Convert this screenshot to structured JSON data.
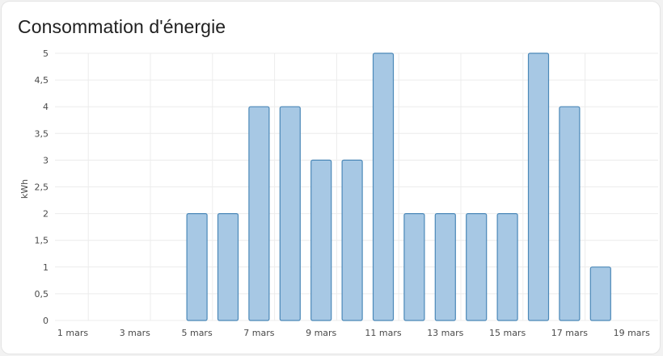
{
  "card": {
    "title": "Consommation d'énergie"
  },
  "chart_data": {
    "type": "bar",
    "title": "Consommation d'énergie",
    "ylabel": "kWh",
    "xlabel": "",
    "ylim": [
      0,
      5
    ],
    "y_ticks": [
      "0",
      "0,5",
      "1",
      "1,5",
      "2",
      "2,5",
      "3",
      "3,5",
      "4",
      "4,5",
      "5"
    ],
    "x_ticks": [
      "1 mars",
      "3 mars",
      "5 mars",
      "7 mars",
      "9 mars",
      "11 mars",
      "13 mars",
      "15 mars",
      "17 mars",
      "19 mars"
    ],
    "categories": [
      "1 mars",
      "2 mars",
      "3 mars",
      "4 mars",
      "5 mars",
      "6 mars",
      "7 mars",
      "8 mars",
      "9 mars",
      "10 mars",
      "11 mars",
      "12 mars",
      "13 mars",
      "14 mars",
      "15 mars",
      "16 mars",
      "17 mars",
      "18 mars",
      "19 mars"
    ],
    "values": [
      0,
      0,
      0,
      0,
      2,
      2,
      4,
      4,
      3,
      3,
      5,
      2,
      2,
      2,
      2,
      5,
      4,
      1,
      0
    ],
    "grid": true,
    "legend": "none",
    "colors": {
      "bar_fill": "#a7c8e4",
      "bar_stroke": "#4b88b8"
    }
  }
}
